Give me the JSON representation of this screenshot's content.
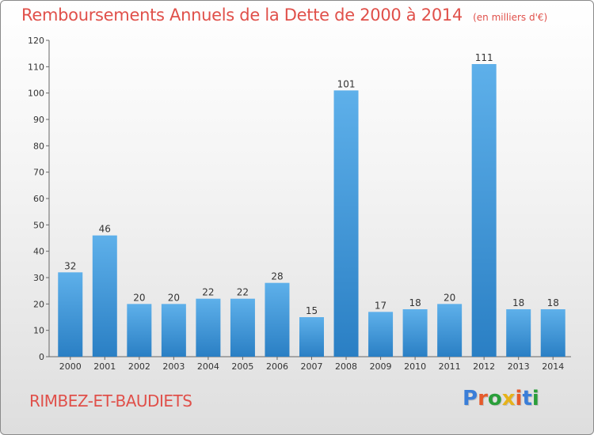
{
  "header": {
    "title": "Remboursements Annuels de la Dette de 2000 à 2014",
    "unit": "(en milliers d'€)"
  },
  "footer": {
    "place": "RIMBEZ-ET-BAUDIETS",
    "logo": "Proxiti"
  },
  "colors": {
    "title": "#e0504a",
    "bar_light": "#5eb0ea",
    "bar_dark": "#2a7fc4",
    "logo": [
      "#3a7ed8",
      "#e65a2a",
      "#2a9e3a",
      "#e6b21a",
      "#e65a2a",
      "#3a7ed8",
      "#2a9e3a"
    ]
  },
  "chart_data": {
    "type": "bar",
    "categories": [
      "2000",
      "2001",
      "2002",
      "2003",
      "2004",
      "2005",
      "2006",
      "2007",
      "2008",
      "2009",
      "2010",
      "2011",
      "2012",
      "2013",
      "2014"
    ],
    "values": [
      32,
      46,
      20,
      20,
      22,
      22,
      28,
      15,
      101,
      17,
      18,
      20,
      111,
      18,
      18
    ],
    "yticks": [
      "0",
      "10",
      "20",
      "30",
      "40",
      "50",
      "60",
      "70",
      "80",
      "90",
      "100",
      "110",
      "120"
    ],
    "ylim": [
      0,
      120
    ],
    "grid": false,
    "legend": "none"
  }
}
